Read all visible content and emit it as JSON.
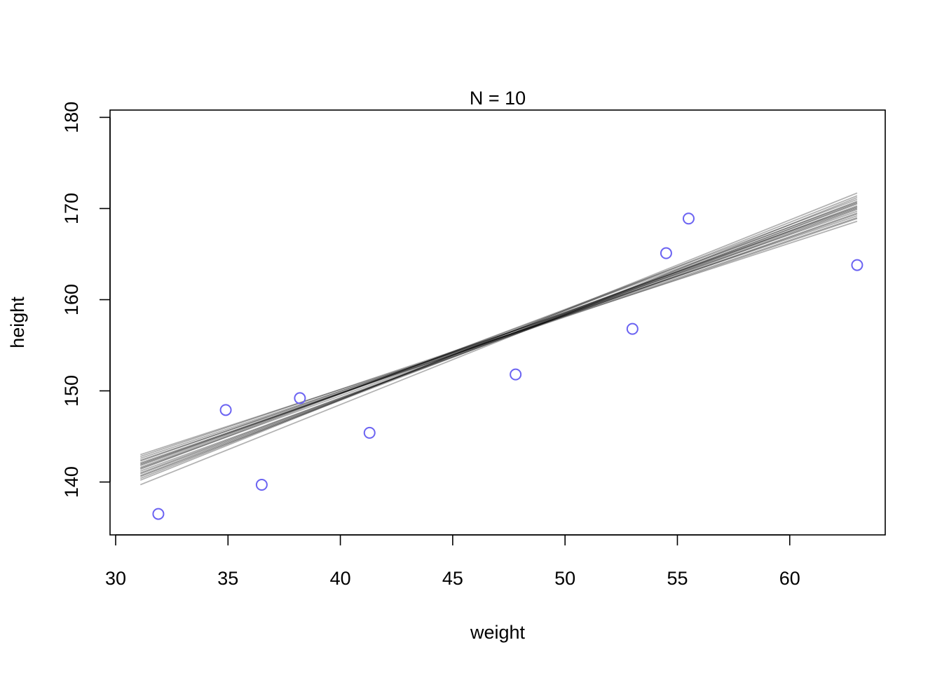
{
  "chart_data": {
    "type": "scatter",
    "title": "N = 10",
    "xlabel": "weight",
    "ylabel": "height",
    "xlim": [
      29.75,
      64.25
    ],
    "ylim": [
      134.2,
      180.8
    ],
    "x_ticks": [
      30,
      35,
      40,
      45,
      50,
      55,
      60
    ],
    "y_ticks": [
      140,
      150,
      160,
      170,
      180
    ],
    "grid": false,
    "legend": "none",
    "point_color": "#6b63f2",
    "line_color": "#000000",
    "points": [
      {
        "x": 31.9,
        "y": 136.5
      },
      {
        "x": 34.9,
        "y": 147.9
      },
      {
        "x": 36.5,
        "y": 139.7
      },
      {
        "x": 38.2,
        "y": 149.2
      },
      {
        "x": 41.3,
        "y": 145.4
      },
      {
        "x": 47.8,
        "y": 151.8
      },
      {
        "x": 53.0,
        "y": 156.8
      },
      {
        "x": 54.5,
        "y": 165.1
      },
      {
        "x": 55.5,
        "y": 168.9
      },
      {
        "x": 63.0,
        "y": 163.8
      }
    ],
    "lines_x_range": [
      31.1,
      63.0
    ],
    "regression_lines": [
      {
        "y_start": 141.0,
        "y_end": 170.5
      },
      {
        "y_start": 142.0,
        "y_end": 169.5
      },
      {
        "y_start": 140.2,
        "y_end": 171.7
      },
      {
        "y_start": 143.0,
        "y_end": 168.6
      },
      {
        "y_start": 141.5,
        "y_end": 170.0
      },
      {
        "y_start": 139.7,
        "y_end": 171.2
      },
      {
        "y_start": 142.6,
        "y_end": 169.0
      },
      {
        "y_start": 140.7,
        "y_end": 170.8
      },
      {
        "y_start": 141.8,
        "y_end": 170.2
      },
      {
        "y_start": 142.3,
        "y_end": 169.7
      },
      {
        "y_start": 140.4,
        "y_end": 171.4
      },
      {
        "y_start": 141.2,
        "y_end": 169.9
      },
      {
        "y_start": 142.8,
        "y_end": 169.2
      },
      {
        "y_start": 141.6,
        "y_end": 170.7
      },
      {
        "y_start": 140.9,
        "y_end": 170.3
      },
      {
        "y_start": 142.1,
        "y_end": 169.4
      },
      {
        "y_start": 141.4,
        "y_end": 171.0
      },
      {
        "y_start": 140.6,
        "y_end": 170.6
      },
      {
        "y_start": 142.4,
        "y_end": 168.9
      },
      {
        "y_start": 141.9,
        "y_end": 170.1
      }
    ]
  }
}
